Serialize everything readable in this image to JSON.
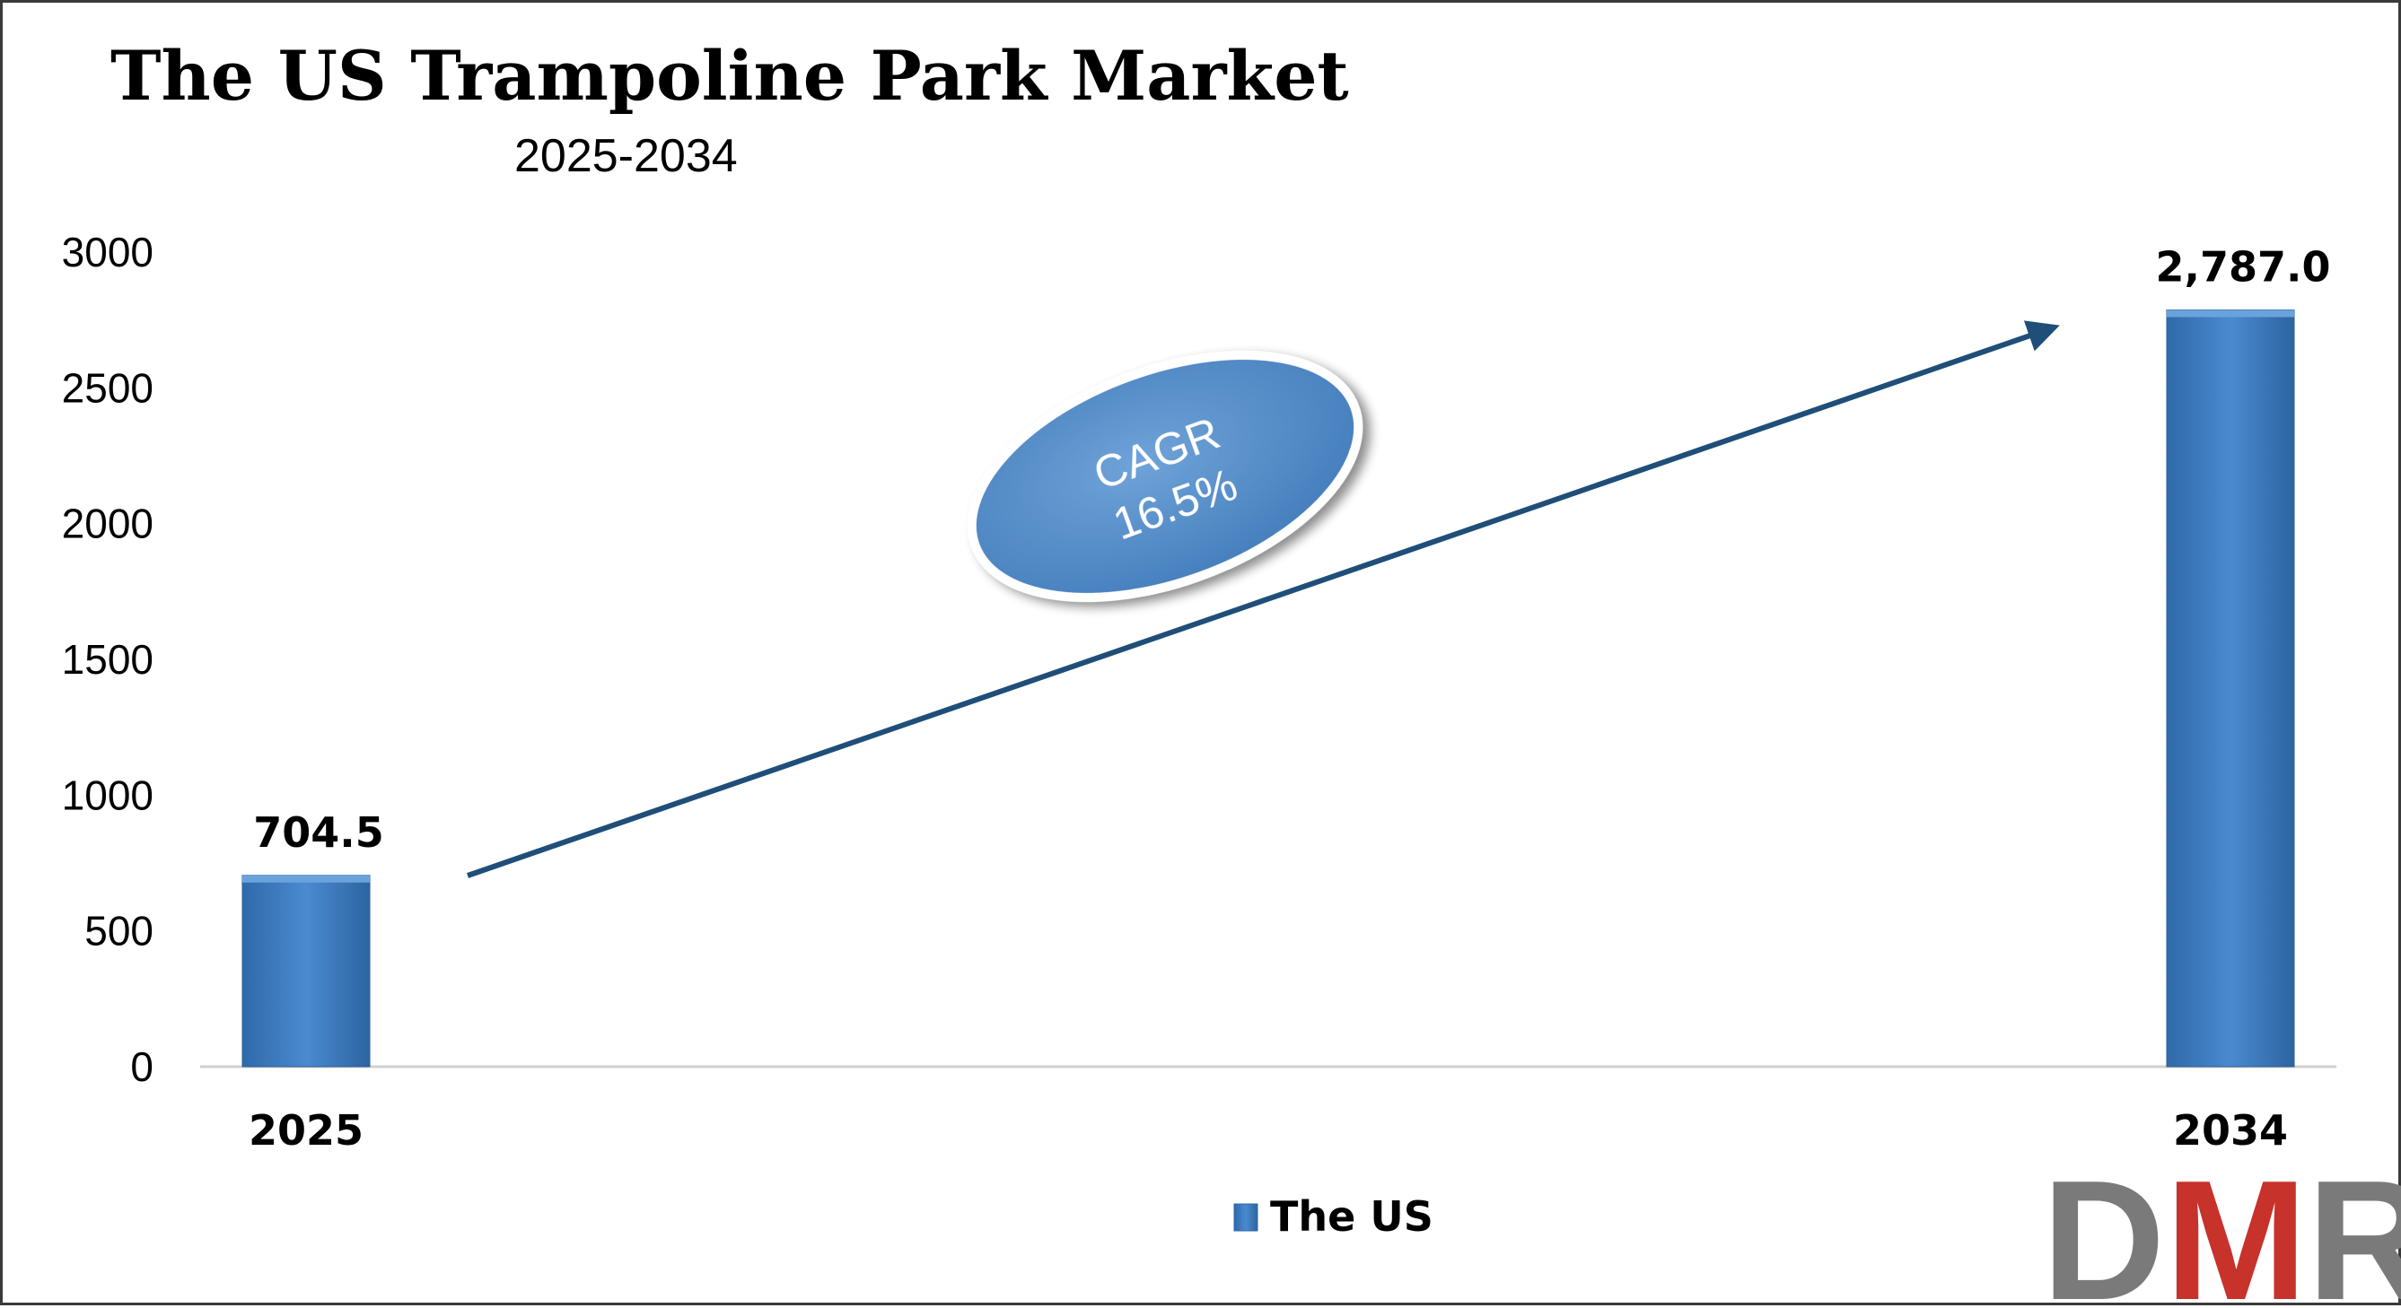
{
  "chart_data": {
    "type": "bar",
    "title": "The US Trampoline Park Market",
    "subtitle": "2025-2034",
    "categories": [
      "2025",
      "2034"
    ],
    "series": [
      {
        "name": "The US",
        "values": [
          704.5,
          2787.0
        ],
        "labels": [
          "704.5",
          "2,787.0"
        ]
      }
    ],
    "ylim": [
      0,
      3000
    ],
    "yticks": [
      "0",
      "500",
      "1000",
      "1500",
      "2000",
      "2500",
      "3000"
    ],
    "grid": false,
    "legend": "bottom-center",
    "bar_color": "#3f7fc4",
    "annotation": {
      "line1": "CAGR",
      "line2": "16.5%",
      "color": "#4f8ac9"
    }
  },
  "logo": {
    "text": "DMR",
    "colors": [
      "#7a7a7a",
      "#c7322b",
      "#7a7a7a"
    ]
  }
}
